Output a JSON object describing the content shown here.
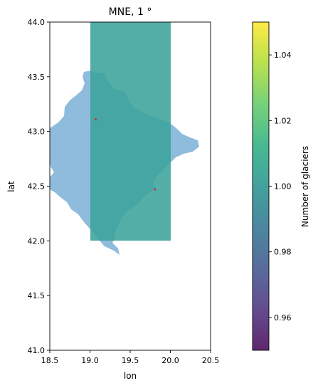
{
  "chart_data": {
    "type": "map",
    "title": "MNE, 1 °",
    "xlabel": "lon",
    "ylabel": "lat",
    "xlim": [
      18.5,
      20.5
    ],
    "ylim": [
      41.0,
      44.0
    ],
    "xticks": [
      "18.5",
      "19.0",
      "19.5",
      "20.0",
      "20.5"
    ],
    "yticks": [
      "41.0",
      "41.5",
      "42.0",
      "42.5",
      "43.0",
      "43.5",
      "44.0"
    ],
    "grid": false,
    "cell": {
      "lon": [
        19.0,
        20.0
      ],
      "lat": [
        42.0,
        44.0
      ],
      "value": 1.0,
      "color": "#3ba39b"
    },
    "country_color": "#8fbcdc",
    "glaciers": [
      {
        "lon": 19.07,
        "lat": 43.11
      },
      {
        "lon": 19.81,
        "lat": 42.47
      }
    ],
    "glacier_color": "#d62728",
    "colorbar": {
      "label": "Number of glaciers",
      "range": [
        0.95,
        1.05
      ],
      "ticks": [
        "0.96",
        "0.98",
        "1.00",
        "1.02",
        "1.04"
      ],
      "tick_values": [
        0.96,
        0.98,
        1.0,
        1.02,
        1.04
      ],
      "colormap": "viridis"
    }
  }
}
